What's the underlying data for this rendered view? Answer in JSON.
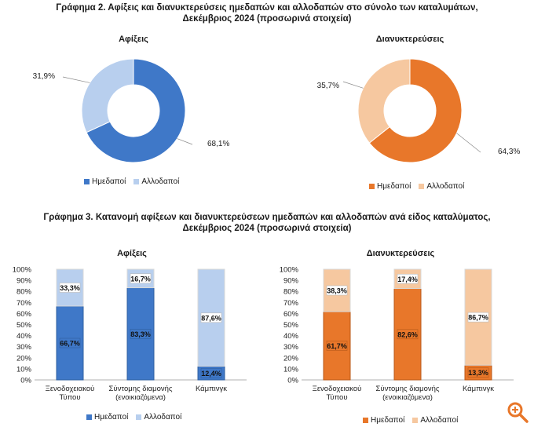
{
  "figure2": {
    "title_line1": "Γράφημα 2. Αφίξεις και διανυκτερεύσεις ημεδαπών και αλλοδαπών στο σύνολο των καταλυμάτων,",
    "title_line2": "Δεκέμβριος 2024  (προσωρινά στοιχεία)"
  },
  "figure3": {
    "title_line1": "Γράφημα 3. Κατανομή αφίξεων και διανυκτερεύσεων ημεδαπών και αλλοδαπών ανά είδος καταλύματος,",
    "title_line2": "Δεκέμβριος 2024 (προσωρινά στοιχεία)"
  },
  "colors": {
    "arr_dom": "#3f78c8",
    "arr_for": "#b8cfee",
    "arr_dom_dark": "#2f5f9f",
    "ngt_dom": "#e8772a",
    "ngt_for": "#f6c8a0",
    "ngt_dom_dark": "#b85a1a"
  },
  "chart_data": [
    {
      "type": "pie",
      "title": "Αφίξεις",
      "labels": [
        "Ημεδαποί",
        "Αλλοδαποί"
      ],
      "values": [
        68.1,
        31.9
      ],
      "value_labels": [
        "68,1%",
        "31,9%"
      ],
      "legend": "bottom"
    },
    {
      "type": "pie",
      "title": "Διανυκτερεύσεις",
      "labels": [
        "Ημεδαποί",
        "Αλλοδαποί"
      ],
      "values": [
        64.3,
        35.7
      ],
      "value_labels": [
        "64,3%",
        "35,7%"
      ],
      "legend": "bottom"
    },
    {
      "type": "bar",
      "stacked": true,
      "title": "Αφίξεις",
      "categories": [
        [
          "Ξενοδοχειακού",
          "Τύπου"
        ],
        [
          "Σύντομης διαμονής",
          "(ενοικιαζόμενα)"
        ],
        [
          "Κάμπινγκ"
        ]
      ],
      "series": [
        {
          "name": "Ημεδαποί",
          "values": [
            66.7,
            83.3,
            12.4
          ],
          "labels": [
            "66,7%",
            "83,3%",
            "12,4%"
          ]
        },
        {
          "name": "Αλλοδαποί",
          "values": [
            33.3,
            16.7,
            87.6
          ],
          "labels": [
            "33,3%",
            "16,7%",
            "87,6%"
          ]
        }
      ],
      "ylim": [
        0,
        100
      ],
      "yticks": [
        "0%",
        "10%",
        "20%",
        "30%",
        "40%",
        "50%",
        "60%",
        "70%",
        "80%",
        "90%",
        "100%"
      ],
      "legend": "bottom"
    },
    {
      "type": "bar",
      "stacked": true,
      "title": "Διανυκτερεύσεις",
      "categories": [
        [
          "Ξενοδοχειακού",
          "Τύπου"
        ],
        [
          "Σύντομης διαμονής",
          "(ενοικιαζόμενα)"
        ],
        [
          "Κάμπινγκ"
        ]
      ],
      "series": [
        {
          "name": "Ημεδαποί",
          "values": [
            61.7,
            82.6,
            13.3
          ],
          "labels": [
            "61,7%",
            "82,6%",
            "13,3%"
          ]
        },
        {
          "name": "Αλλοδαποί",
          "values": [
            38.3,
            17.4,
            86.7
          ],
          "labels": [
            "38,3%",
            "17,4%",
            "86,7%"
          ]
        }
      ],
      "ylim": [
        0,
        100
      ],
      "yticks": [
        "0%",
        "10%",
        "20%",
        "30%",
        "40%",
        "50%",
        "60%",
        "70%",
        "80%",
        "90%",
        "100%"
      ],
      "legend": "bottom"
    }
  ]
}
